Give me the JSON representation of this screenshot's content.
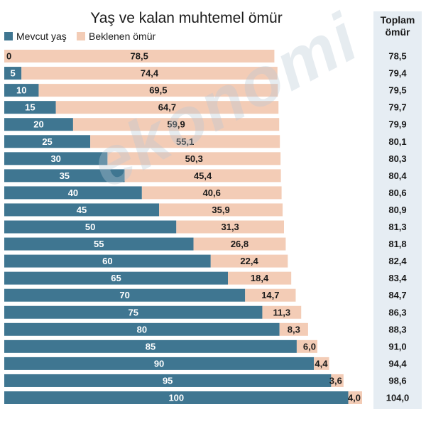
{
  "chart_data": {
    "type": "bar",
    "stacked": true,
    "orientation": "horizontal",
    "title": "Yaş ve kalan muhtemel ömür",
    "legend": [
      "Mevcut yaş",
      "Beklenen ömür"
    ],
    "total_header": [
      "Toplam",
      "ömür"
    ],
    "watermark": "ekonomi",
    "colors": {
      "current_age": "#3f7691",
      "expected": "#f3ccb6",
      "total_bg": "#e6edf3"
    },
    "categories": [
      "0",
      "5",
      "10",
      "15",
      "20",
      "25",
      "30",
      "35",
      "40",
      "45",
      "50",
      "55",
      "60",
      "65",
      "70",
      "75",
      "80",
      "85",
      "90",
      "95",
      "100"
    ],
    "series": [
      {
        "name": "Mevcut yaş",
        "values": [
          0,
          5,
          10,
          15,
          20,
          25,
          30,
          35,
          40,
          45,
          50,
          55,
          60,
          65,
          70,
          75,
          80,
          85,
          90,
          95,
          100
        ]
      },
      {
        "name": "Beklenen ömür",
        "values": [
          78.5,
          74.4,
          69.5,
          64.7,
          59.9,
          55.1,
          50.3,
          45.4,
          40.6,
          35.9,
          31.3,
          26.8,
          22.4,
          18.4,
          14.7,
          11.3,
          8.3,
          6.0,
          4.4,
          3.6,
          4.0
        ]
      }
    ],
    "age_labels": [
      "0",
      "5",
      "10",
      "15",
      "20",
      "25",
      "30",
      "35",
      "40",
      "45",
      "50",
      "55",
      "60",
      "65",
      "70",
      "75",
      "80",
      "85",
      "90",
      "95",
      "100"
    ],
    "expected_labels": [
      "78,5",
      "74,4",
      "69,5",
      "64,7",
      "59,9",
      "55,1",
      "50,3",
      "45,4",
      "40,6",
      "35,9",
      "31,3",
      "26,8",
      "22,4",
      "18,4",
      "14,7",
      "11,3",
      "8,3",
      "6,0",
      "4,4",
      "3,6",
      "4,0"
    ],
    "totals": [
      "78,5",
      "79,4",
      "79,5",
      "79,7",
      "79,9",
      "80,1",
      "80,3",
      "80,4",
      "80,6",
      "80,9",
      "81,3",
      "81,8",
      "82,4",
      "83,4",
      "84,7",
      "86,3",
      "88,3",
      "91,0",
      "94,4",
      "98,6",
      "104,0"
    ],
    "xlim": [
      0,
      104
    ]
  }
}
